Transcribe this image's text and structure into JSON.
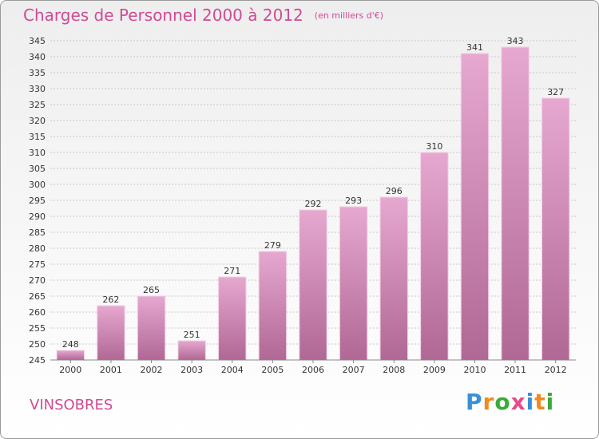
{
  "title": "Charges de Personnel 2000 à 2012",
  "unit": "(en milliers d'€)",
  "place": "VINSOBRES",
  "logo": {
    "text": "Proxiti",
    "colors": [
      "#3a8fd6",
      "#f08a1c",
      "#3aaa3a",
      "#e94b8a",
      "#3a8fd6",
      "#f08a1c",
      "#3aaa3a"
    ]
  },
  "colors": {
    "bar_top": "#e6a8d0",
    "bar_bottom": "#b06894",
    "grid": "#c8c8c8",
    "accent": "#d04a92"
  },
  "chart_data": {
    "type": "bar",
    "title": "Charges de Personnel 2000 à 2012",
    "xlabel": "",
    "ylabel": "",
    "categories": [
      "2000",
      "2001",
      "2002",
      "2003",
      "2004",
      "2005",
      "2006",
      "2007",
      "2008",
      "2009",
      "2010",
      "2011",
      "2012"
    ],
    "values": [
      248,
      262,
      265,
      251,
      271,
      279,
      292,
      293,
      296,
      310,
      341,
      343,
      327
    ],
    "ylim": [
      245,
      345
    ],
    "yticks": [
      245,
      250,
      255,
      260,
      265,
      270,
      275,
      280,
      285,
      290,
      295,
      300,
      305,
      310,
      315,
      320,
      325,
      330,
      335,
      340,
      345
    ],
    "grid": true,
    "legend": "none"
  }
}
